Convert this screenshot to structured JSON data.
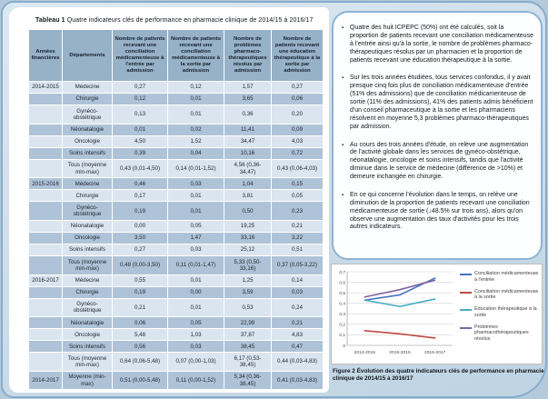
{
  "table": {
    "title_bold": "Tableau 1",
    "title_rest": " Quatre indicateurs clés de performance en pharmacie clinique de 2014/15 à 2016/17",
    "columns": [
      "Années financières",
      "Départements",
      "Nombre de patients recevant une conciliation médicamenteuse à l'entrée par admission",
      "Nombre de patients recevant une conciliation médicamenteuse à la sortie par admission",
      "Nombre de problèmes pharmaco-thérapeutiques résolus par admission",
      "Nombre de patients recevant une éducation thérapeutique à la sortie par admission"
    ],
    "rows": [
      {
        "year": "2014-2015",
        "dept": "Médecine",
        "v": [
          "0,27",
          "0,12",
          "1,57",
          "0,27"
        ]
      },
      {
        "year": "",
        "dept": "Chirurgie",
        "v": [
          "0,12",
          "0,01",
          "3,65",
          "0,06"
        ]
      },
      {
        "year": "",
        "dept": "Gynéco-obstétrique",
        "v": [
          "0,13",
          "0,01",
          "0,36",
          "0,20"
        ]
      },
      {
        "year": "",
        "dept": "Néonatalogie",
        "v": [
          "0,01",
          "0,02",
          "11,41",
          "0,09"
        ]
      },
      {
        "year": "",
        "dept": "Oncologie",
        "v": [
          "4,50",
          "1,52",
          "34,47",
          "4,03"
        ]
      },
      {
        "year": "",
        "dept": "Soins intensifs",
        "v": [
          "0,39",
          "0,04",
          "10,16",
          "0,72"
        ]
      },
      {
        "year": "",
        "dept": "Tous (moyenne min-max)",
        "v": [
          "0,43 (0,01-4,50)",
          "0,14 (0,01-1,52)",
          "4,56 (0,36-34,47)",
          "0,43 (0,06-4,03)"
        ]
      },
      {
        "year": "2015-2016",
        "dept": "Médecine",
        "v": [
          "0,46",
          "0,03",
          "1,04",
          "0,15"
        ]
      },
      {
        "year": "",
        "dept": "Chirurgie",
        "v": [
          "0,17",
          "0,01",
          "3,81",
          "0,05"
        ]
      },
      {
        "year": "",
        "dept": "Gynéco-obstétrique",
        "v": [
          "0,19",
          "0,01",
          "0,50",
          "0,23"
        ]
      },
      {
        "year": "",
        "dept": "Néonatalogie",
        "v": [
          "0,00",
          "0,05",
          "19,25",
          "0,21"
        ]
      },
      {
        "year": "",
        "dept": "Oncologie",
        "v": [
          "3,50",
          "1,47",
          "33,16",
          "3,22"
        ]
      },
      {
        "year": "",
        "dept": "Soins intensifs",
        "v": [
          "0,27",
          "0,03",
          "25,12",
          "0,51"
        ]
      },
      {
        "year": "",
        "dept": "Tous (moyenne min-max)",
        "v": [
          "0,48 (0,00-3,50)",
          "0,11 (0,01-1,47)",
          "5,33 (0,50-33,16)",
          "0,37 (0,05-3,22)"
        ]
      },
      {
        "year": "2016-2017",
        "dept": "Médecine",
        "v": [
          "0,55",
          "0,01",
          "1,25",
          "0,14"
        ]
      },
      {
        "year": "",
        "dept": "Chirurgie",
        "v": [
          "0,19",
          "0,00",
          "3,59",
          "0,03"
        ]
      },
      {
        "year": "",
        "dept": "Gynéco-obstétrique",
        "v": [
          "0,21",
          "0,01",
          "0,53",
          "0,24"
        ]
      },
      {
        "year": "",
        "dept": "Néonatalogie",
        "v": [
          "0,06",
          "0,05",
          "22,99",
          "0,21"
        ]
      },
      {
        "year": "",
        "dept": "Oncologie",
        "v": [
          "5,48",
          "1,03",
          "37,87",
          "4,83"
        ]
      },
      {
        "year": "",
        "dept": "Soins intensifs",
        "v": [
          "0,56",
          "0,03",
          "38,45",
          "0,47"
        ]
      },
      {
        "year": "",
        "dept": "Tous (moyenne min-max)",
        "v": [
          "0,64 (0,06-5,48)",
          "0,07 (0,00-1,03)",
          "6,17 (0,53-38,45)",
          "0,44 (0,03-4,83)"
        ]
      },
      {
        "year": "2014-2017",
        "dept": "Moyenne (min-max)",
        "v": [
          "0,51 (0,00-5,48)",
          "0,11 (0,00-1,52)",
          "5,34 (0,36-38,45)",
          "0,41 (0,03-4,83)"
        ]
      }
    ]
  },
  "bullets": [
    "Quatre des huit ICPEPC (50%) ont été calculés, soit la proportion de patients recevant une conciliation médicamenteuse à l'entrée ainsi qu'à la sortie, le nombre de problèmes pharmaco-thérapeutiques résolus par un pharmacien et la proportion de patients recevant une éducation thérapeutique à la sortie.",
    "Sur les trois années étudiées, tous services confondus, il y avait presque cinq fois plus de conciliation médicamenteuse d'entrée (51% des admissions) que de conciliation médicamenteuse de sortie (11% des admissions), 41% des patients admis bénéficient d'un conseil pharmaceutique à la sortie et les pharmaciens résolvent en moyenne 5,3 problèmes pharmaco-thérapeutiques par admission.",
    "Au cours des trois années d'étude, on relève une augmentation de l'activité globale dans les services de gynéco-obstétrique, néonatalogie, oncologie et soins intensifs, tandis que l'activité diminue dans le service de médecine (différence de >10%) et demeure inchangée en chirurgie.",
    "En ce qui concerne l'évolution dans le temps, on relève une diminution de la proportion de patients recevant une conciliation médicamenteuse de sortie (↓48.5% sur trois ans), alors qu'on observe une augmentation des taux d'activités pour les trois autres indicateurs."
  ],
  "figure": {
    "caption_bold": "Figure 2",
    "caption_rest": " Évolution des quatre indicateurs clés de performance en pharmacie clinique de 2014/15 à 2016/17"
  },
  "chart_data": {
    "type": "line",
    "x": [
      "2014-2015",
      "2015-2016",
      "2016-2017"
    ],
    "ylim": [
      0,
      0.7
    ],
    "ytick_step": 0.1,
    "ytick_labels": [
      "0",
      "0,1",
      "0,2",
      "0,3",
      "0,4",
      "0,5",
      "0,6",
      "0,7"
    ],
    "grid": true,
    "legend_position": "right",
    "series": [
      {
        "name": "Conciliation médicamenteuse à l'entrée",
        "color": "#4472c4",
        "values": [
          0.43,
          0.48,
          0.64
        ]
      },
      {
        "name": "Conciliation médicamenteuse à la sortie",
        "color": "#bf4b45",
        "values": [
          0.14,
          0.11,
          0.07
        ]
      },
      {
        "name": "Éducation thérapeutique à la sortie",
        "color": "#4aacc5",
        "values": [
          0.43,
          0.37,
          0.44
        ]
      },
      {
        "name": "Problèmes pharmacothérapeutiques résolus",
        "color": "#7f63a1",
        "values": [
          0.46,
          0.53,
          0.62
        ]
      }
    ]
  }
}
